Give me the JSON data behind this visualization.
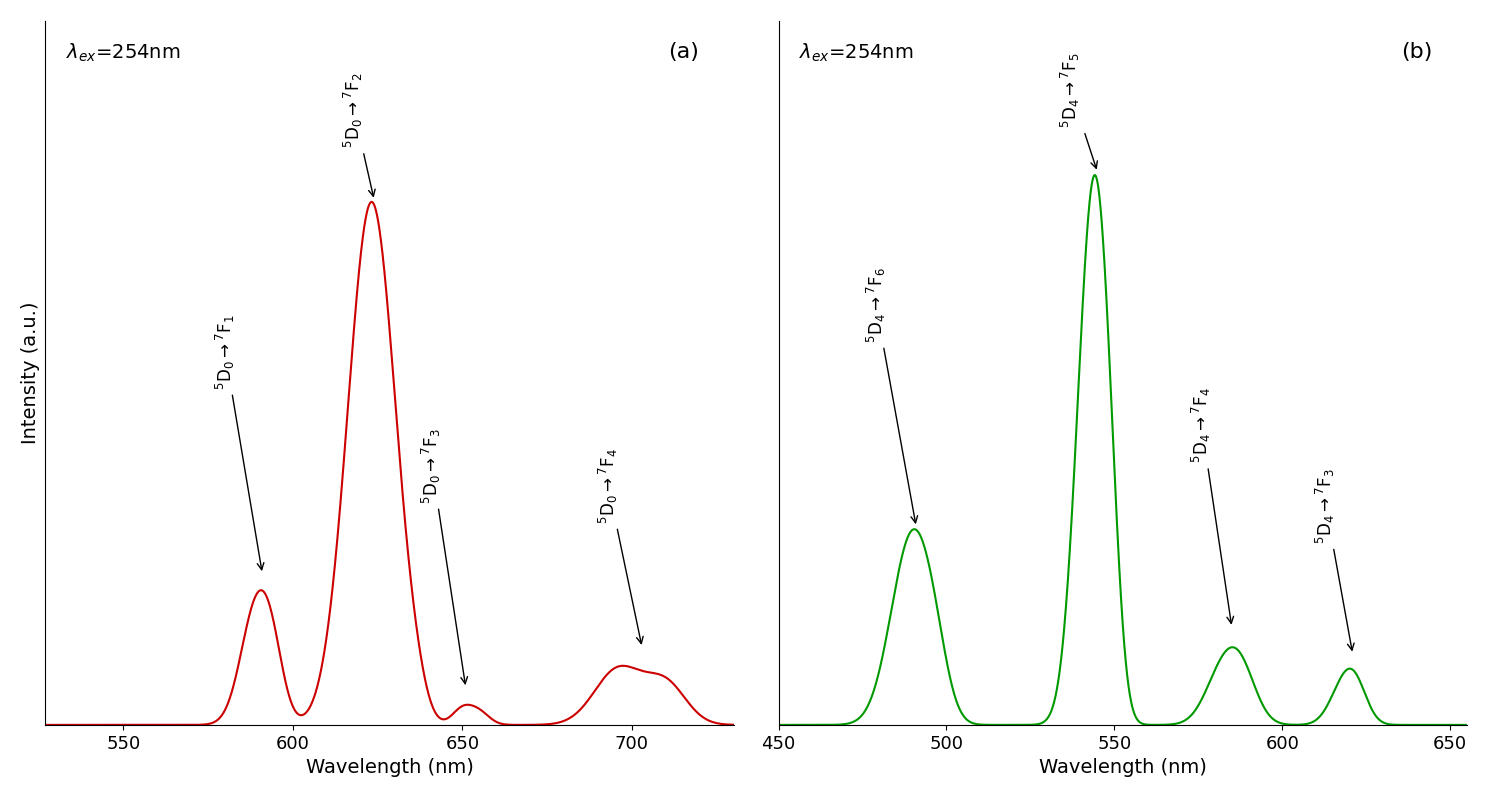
{
  "panel_a": {
    "color": "#cc0000",
    "xlim": [
      527,
      730
    ],
    "xticks": [
      550,
      600,
      650,
      700
    ],
    "xlabel": "Wavelength (nm)",
    "ylabel": "Intensity (a.u.)",
    "panel_label": "(a)",
    "ylim": [
      0.0,
      1.05
    ]
  },
  "panel_b": {
    "color": "#009900",
    "xlim": [
      450,
      655
    ],
    "xticks": [
      450,
      500,
      550,
      600,
      650
    ],
    "xlabel": "Wavelength (nm)",
    "panel_label": "(b)",
    "ylim": [
      0.0,
      1.05
    ]
  },
  "background_color": "#ffffff",
  "font_size": 14,
  "annotation_font_size": 12,
  "tick_font_size": 13
}
